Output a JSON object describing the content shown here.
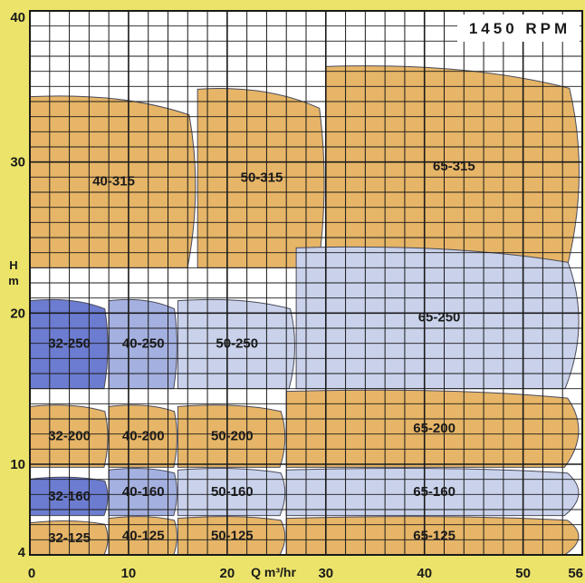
{
  "chart_data": {
    "type": "area",
    "title": "1450 RPM",
    "xlabel": "Q m³/hr",
    "ylabel": "H m",
    "xlim": [
      0,
      56
    ],
    "ylim": [
      4,
      40
    ],
    "x_ticks": [
      "0",
      "10",
      "20",
      "30",
      "40",
      "50",
      "56"
    ],
    "y_ticks": [
      "4",
      "10",
      "20",
      "30",
      "40"
    ],
    "grid": true,
    "colors": {
      "background": "#ece46a",
      "grid": "#1a1a1a",
      "orange": "#e6b567",
      "lightblue": "#c9d2ea",
      "midblue": "#a4b0df",
      "darkblue": "#6c7cd0",
      "outline": "#4a4a5a"
    },
    "regions": [
      {
        "name": "65-315",
        "q": [
          30,
          56
        ],
        "h": [
          23,
          36.5
        ],
        "color": "orange"
      },
      {
        "name": "50-315",
        "q": [
          17,
          30
        ],
        "h": [
          23,
          35
        ],
        "color": "orange"
      },
      {
        "name": "40-315",
        "q": [
          0,
          17
        ],
        "h": [
          23,
          34.5
        ],
        "color": "orange"
      },
      {
        "name": "65-250",
        "q": [
          27,
          56
        ],
        "h": [
          15,
          24.5
        ],
        "color": "lightblue"
      },
      {
        "name": "50-250",
        "q": [
          15,
          27
        ],
        "h": [
          15,
          21
        ],
        "color": "lightblue"
      },
      {
        "name": "40-250",
        "q": [
          8,
          15
        ],
        "h": [
          15,
          21
        ],
        "color": "midblue"
      },
      {
        "name": "32-250",
        "q": [
          0,
          8
        ],
        "h": [
          15,
          21
        ],
        "color": "darkblue"
      },
      {
        "name": "65-200",
        "q": [
          26,
          56
        ],
        "h": [
          9.8,
          15
        ],
        "color": "orange"
      },
      {
        "name": "50-200",
        "q": [
          15,
          26
        ],
        "h": [
          9.8,
          14
        ],
        "color": "orange"
      },
      {
        "name": "40-200",
        "q": [
          8,
          15
        ],
        "h": [
          9.8,
          14
        ],
        "color": "orange"
      },
      {
        "name": "32-200",
        "q": [
          0,
          8
        ],
        "h": [
          9.8,
          14
        ],
        "color": "orange"
      },
      {
        "name": "65-160",
        "q": [
          26,
          56
        ],
        "h": [
          6.6,
          9.8
        ],
        "color": "lightblue"
      },
      {
        "name": "50-160",
        "q": [
          15,
          26
        ],
        "h": [
          6.6,
          9.8
        ],
        "color": "lightblue"
      },
      {
        "name": "40-160",
        "q": [
          8,
          15
        ],
        "h": [
          6.6,
          9.8
        ],
        "color": "midblue"
      },
      {
        "name": "32-160",
        "q": [
          0,
          8
        ],
        "h": [
          6.6,
          9.2
        ],
        "color": "darkblue"
      },
      {
        "name": "65-125",
        "q": [
          26,
          56
        ],
        "h": [
          4,
          6.6
        ],
        "color": "orange"
      },
      {
        "name": "50-125",
        "q": [
          15,
          26
        ],
        "h": [
          4,
          6.6
        ],
        "color": "orange"
      },
      {
        "name": "40-125",
        "q": [
          8,
          15
        ],
        "h": [
          4,
          6.6
        ],
        "color": "orange"
      },
      {
        "name": "32-125",
        "q": [
          0,
          8
        ],
        "h": [
          4,
          6.3
        ],
        "color": "orange"
      }
    ]
  }
}
